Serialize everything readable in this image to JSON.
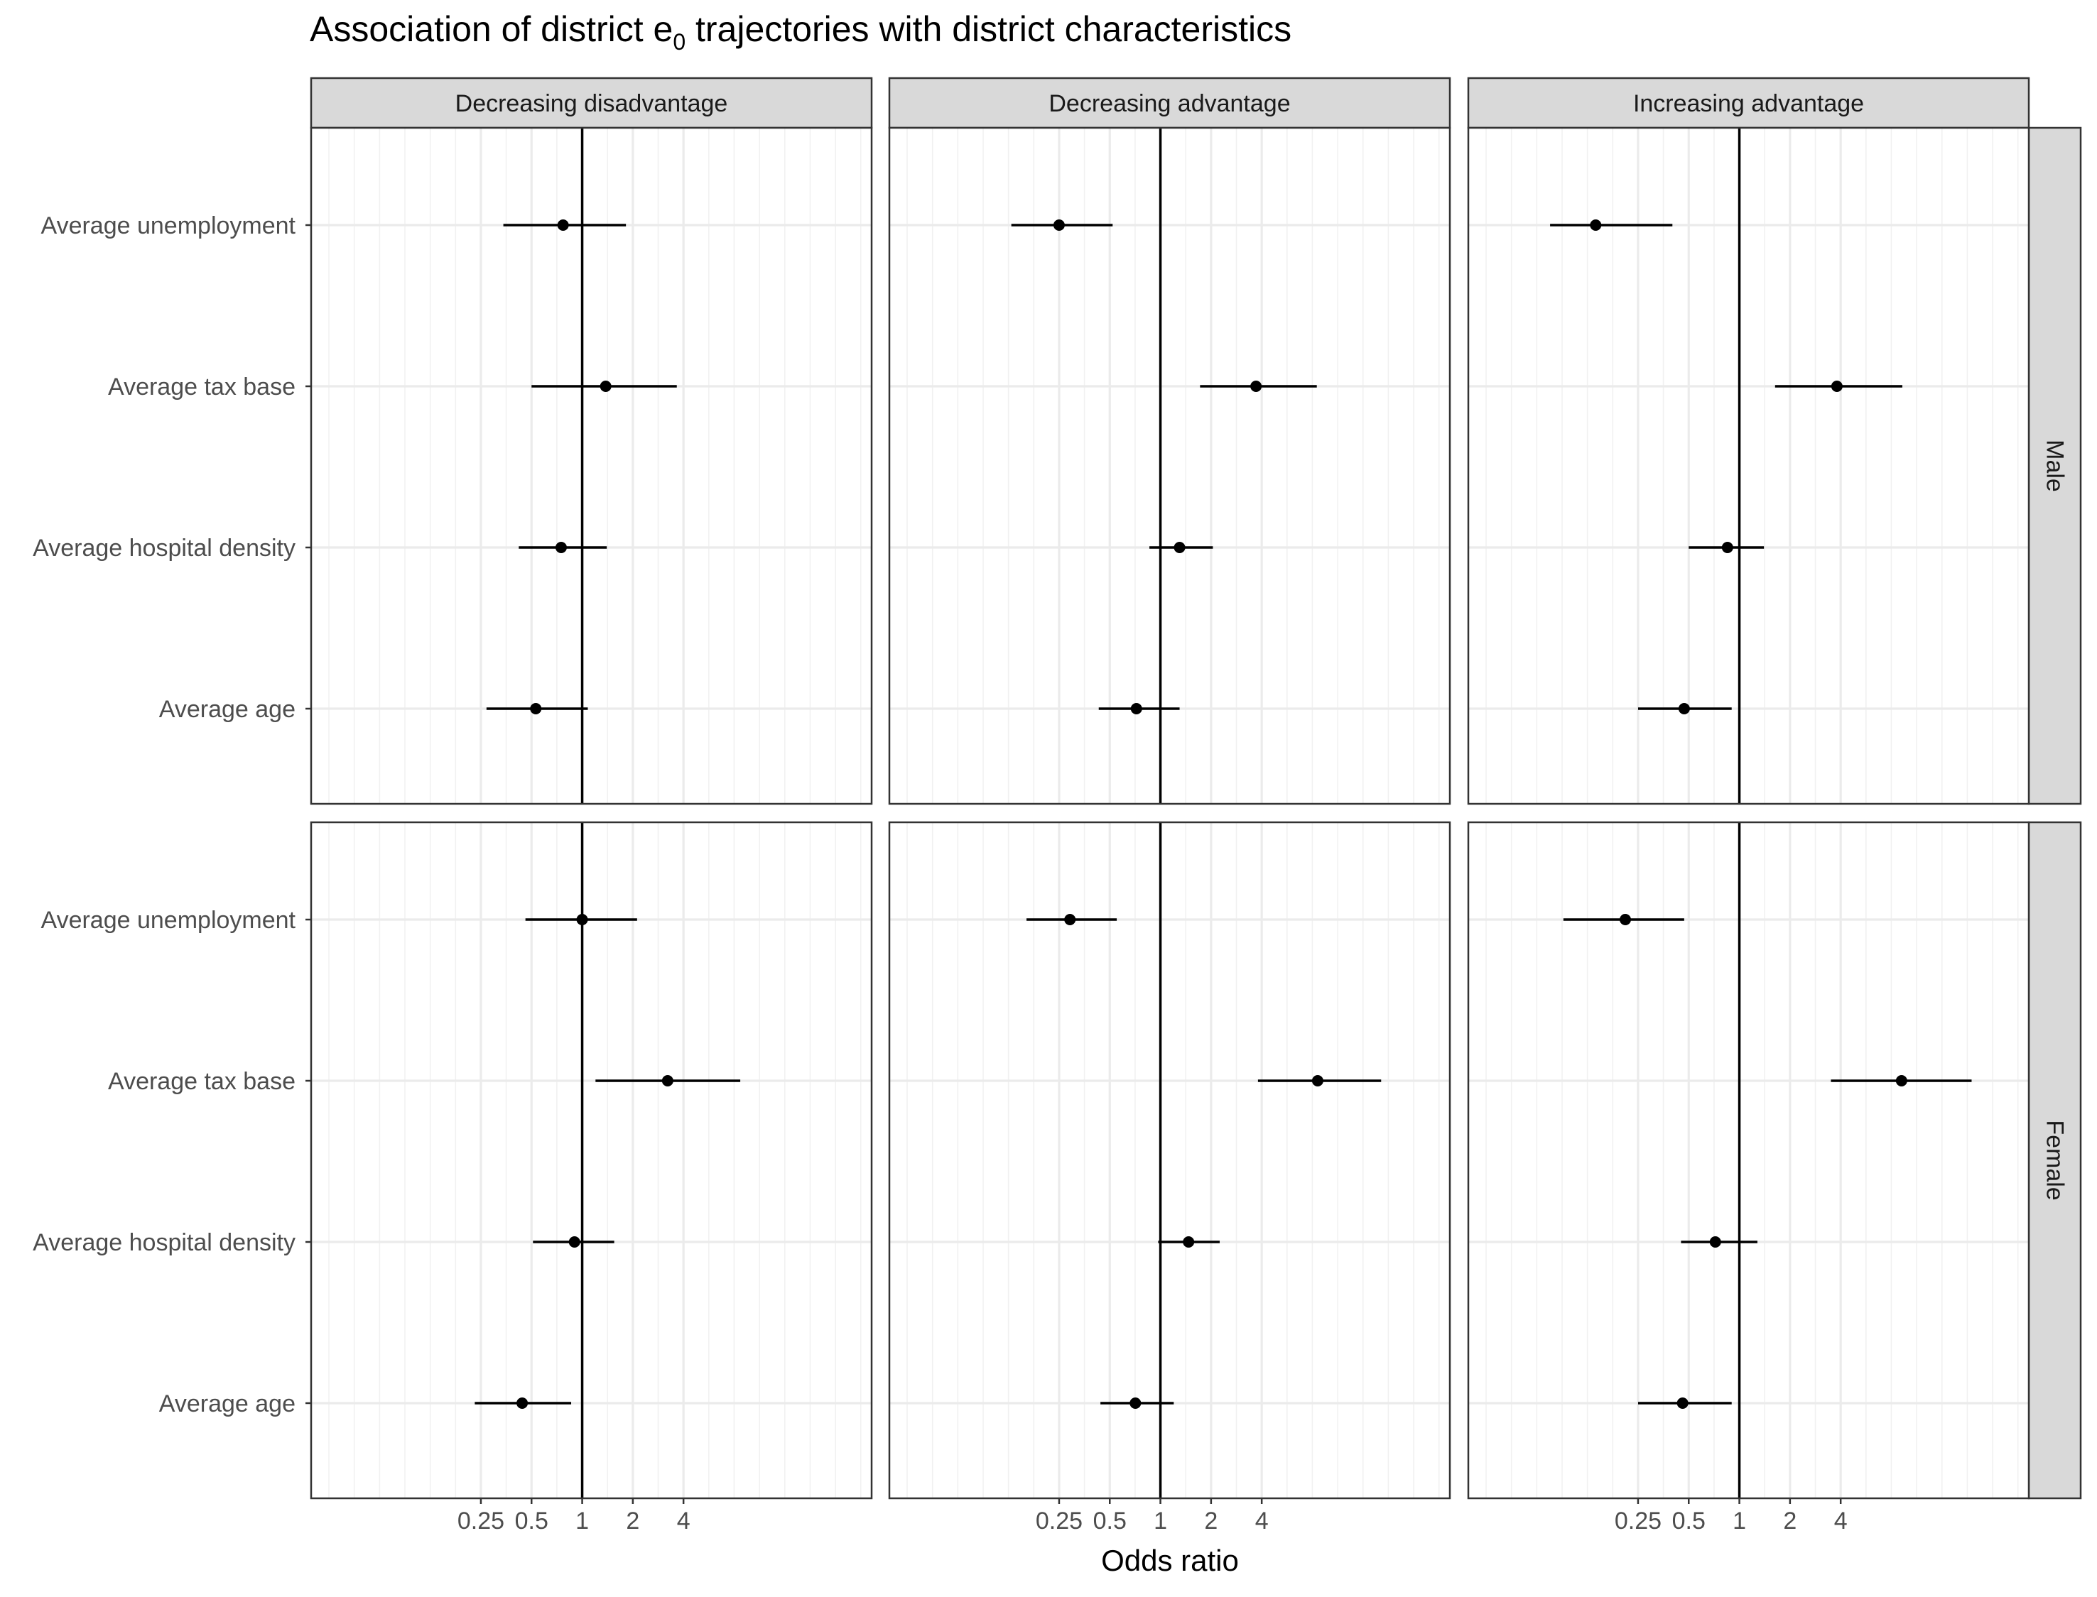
{
  "chart_data": {
    "type": "scatter",
    "subtype": "forest plot with 95% intervals, faceted",
    "title_parts": {
      "before": "Association of district e",
      "subscript": "0",
      "after": " trajectories with district characteristics"
    },
    "xlabel": "Odds ratio",
    "ylabel": "",
    "x_scale": "log2",
    "xlim": [
      0.0245,
      52.5
    ],
    "x_ticks": [
      0.25,
      0.5,
      1,
      2,
      4
    ],
    "x_tick_labels": [
      "0.25",
      "0.5",
      "1",
      "2",
      "4"
    ],
    "reference_line": 1,
    "grid": true,
    "column_facets": [
      "Decreasing disadvantage",
      "Decreasing advantage",
      "Increasing advantage"
    ],
    "row_facets": [
      "Male",
      "Female"
    ],
    "categories": [
      "Average unemployment",
      "Average tax base",
      "Average hospital density",
      "Average age"
    ],
    "panels": [
      {
        "row": "Male",
        "col": "Decreasing disadvantage",
        "points": [
          {
            "category": "Average unemployment",
            "or": 0.77,
            "lo": 0.34,
            "hi": 1.82
          },
          {
            "category": "Average tax base",
            "or": 1.38,
            "lo": 0.5,
            "hi": 3.65
          },
          {
            "category": "Average hospital density",
            "or": 0.75,
            "lo": 0.42,
            "hi": 1.4
          },
          {
            "category": "Average age",
            "or": 0.53,
            "lo": 0.27,
            "hi": 1.08
          }
        ]
      },
      {
        "row": "Male",
        "col": "Decreasing advantage",
        "points": [
          {
            "category": "Average unemployment",
            "or": 0.25,
            "lo": 0.13,
            "hi": 0.52
          },
          {
            "category": "Average tax base",
            "or": 3.7,
            "lo": 1.72,
            "hi": 8.5
          },
          {
            "category": "Average hospital density",
            "or": 1.3,
            "lo": 0.86,
            "hi": 2.05
          },
          {
            "category": "Average age",
            "or": 0.72,
            "lo": 0.43,
            "hi": 1.3
          }
        ]
      },
      {
        "row": "Male",
        "col": "Increasing advantage",
        "points": [
          {
            "category": "Average unemployment",
            "or": 0.14,
            "lo": 0.075,
            "hi": 0.4
          },
          {
            "category": "Average tax base",
            "or": 3.8,
            "lo": 1.63,
            "hi": 9.3
          },
          {
            "category": "Average hospital density",
            "or": 0.85,
            "lo": 0.5,
            "hi": 1.4
          },
          {
            "category": "Average age",
            "or": 0.47,
            "lo": 0.25,
            "hi": 0.9
          }
        ]
      },
      {
        "row": "Female",
        "col": "Decreasing disadvantage",
        "points": [
          {
            "category": "Average unemployment",
            "or": 1.0,
            "lo": 0.46,
            "hi": 2.12
          },
          {
            "category": "Average tax base",
            "or": 3.22,
            "lo": 1.2,
            "hi": 8.7
          },
          {
            "category": "Average hospital density",
            "or": 0.9,
            "lo": 0.51,
            "hi": 1.55
          },
          {
            "category": "Average age",
            "or": 0.44,
            "lo": 0.23,
            "hi": 0.86
          }
        ]
      },
      {
        "row": "Female",
        "col": "Decreasing advantage",
        "points": [
          {
            "category": "Average unemployment",
            "or": 0.29,
            "lo": 0.16,
            "hi": 0.55
          },
          {
            "category": "Average tax base",
            "or": 8.6,
            "lo": 3.8,
            "hi": 20.5
          },
          {
            "category": "Average hospital density",
            "or": 1.47,
            "lo": 0.97,
            "hi": 2.25
          },
          {
            "category": "Average age",
            "or": 0.71,
            "lo": 0.44,
            "hi": 1.2
          }
        ]
      },
      {
        "row": "Female",
        "col": "Increasing advantage",
        "points": [
          {
            "category": "Average unemployment",
            "or": 0.21,
            "lo": 0.09,
            "hi": 0.47
          },
          {
            "category": "Average tax base",
            "or": 9.2,
            "lo": 3.5,
            "hi": 24.0
          },
          {
            "category": "Average hospital density",
            "or": 0.72,
            "lo": 0.45,
            "hi": 1.28
          },
          {
            "category": "Average age",
            "or": 0.46,
            "lo": 0.25,
            "hi": 0.9
          }
        ]
      }
    ]
  }
}
